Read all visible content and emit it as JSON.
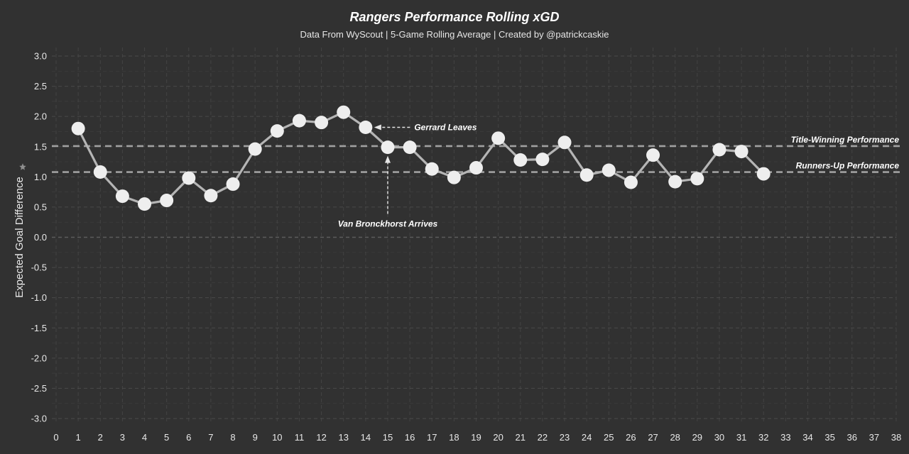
{
  "chart_data": {
    "type": "line",
    "title": "Rangers Performance Rolling xGD",
    "subtitle": "Data From WyScout | 5-Game Rolling Average | Created by @patrickcaskie",
    "xlabel": "",
    "ylabel": "Expected Goal Difference",
    "xlim": [
      0,
      38
    ],
    "ylim": [
      -3.0,
      3.0
    ],
    "x_ticks": [
      0,
      1,
      2,
      3,
      4,
      5,
      6,
      7,
      8,
      9,
      10,
      11,
      12,
      13,
      14,
      15,
      16,
      17,
      18,
      19,
      20,
      21,
      22,
      23,
      24,
      25,
      26,
      27,
      28,
      29,
      30,
      31,
      32,
      33,
      34,
      35,
      36,
      37,
      38
    ],
    "y_ticks": [
      "3.0",
      "2.5",
      "2.0",
      "1.5",
      "1.0",
      "0.5",
      "0.0",
      "-0.5",
      "-1.0",
      "-1.5",
      "-2.0",
      "-2.5",
      "-3.0"
    ],
    "grid": true,
    "series": [
      {
        "name": "Rolling xGD",
        "color": "#b5b5b5",
        "marker_color": "#eeeeee",
        "x": [
          1,
          2,
          3,
          4,
          5,
          6,
          7,
          8,
          9,
          10,
          11,
          12,
          13,
          14,
          15,
          16,
          17,
          18,
          19,
          20,
          21,
          22,
          23,
          24,
          25,
          26,
          27,
          28,
          29,
          30,
          31,
          32
        ],
        "values": [
          1.8,
          1.08,
          0.68,
          0.55,
          0.61,
          0.98,
          0.69,
          0.88,
          1.46,
          1.76,
          1.93,
          1.9,
          2.07,
          1.82,
          1.49,
          1.49,
          1.13,
          0.99,
          1.15,
          1.64,
          1.28,
          1.29,
          1.57,
          1.03,
          1.11,
          0.91,
          1.36,
          0.92,
          0.97,
          1.45,
          1.42,
          1.05
        ]
      }
    ],
    "reference_lines": [
      {
        "label": "Title-Winning Performance",
        "value": 1.51,
        "color": "#a0a0a0"
      },
      {
        "label": "Runners-Up Performance",
        "value": 1.08,
        "color": "#a0a0a0"
      }
    ],
    "annotations": [
      {
        "label": "Gerrard Leaves",
        "point_x": 14,
        "point_y": 1.82,
        "text_x": 16.2,
        "text_y": 1.82
      },
      {
        "label": "Van Bronckhorst Arrives",
        "point_x": 15,
        "point_y": 1.49,
        "text_x": 15,
        "text_y": 0.27
      }
    ],
    "colors": {
      "background": "#313131",
      "grid": "#4a4a4a",
      "zero_line": "#5c5c5c",
      "text": "#e8e8e8"
    }
  }
}
